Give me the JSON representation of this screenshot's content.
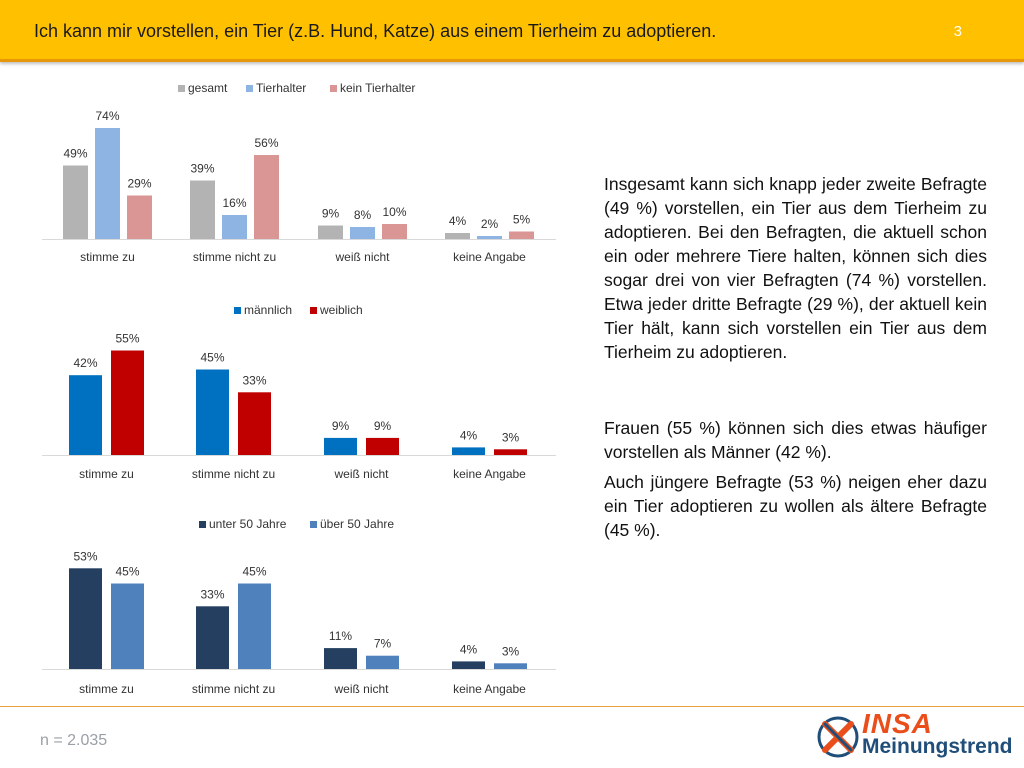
{
  "header": {
    "title": "Ich kann mir vorstellen, ein Tier (z.B. Hund, Katze) aus einem Tierheim zu adoptieren.",
    "page_number": "3"
  },
  "text_panel": {
    "paragraph_1": "Insgesamt kann sich knapp jeder zweite Befragte (49 %) vorstellen, ein Tier aus dem Tierheim zu adoptieren. Bei den Befragten, die aktuell schon ein oder mehrere Tiere halten, können sich dies sogar drei von vier Befragten (74 %) vorstellen. Etwa jeder dritte Befragte (29 %), der aktuell kein Tier hält, kann sich vorstellen ein Tier aus dem Tierheim zu adoptieren.",
    "paragraph_2": "Frauen (55 %) können sich dies etwas häufiger vorstellen als Männer (42 %).",
    "paragraph_3": "Auch jüngere Befragte (53 %) neigen eher dazu ein Tier adoptieren zu wollen als ältere Befragte (45 %)."
  },
  "footer": {
    "sample_size": "n = 2.035",
    "logo_brand": "INSA",
    "logo_subtitle": "Meinungstrend"
  },
  "chart_data": [
    {
      "type": "bar",
      "categories": [
        "stimme zu",
        "stimme nicht zu",
        "weiß nicht",
        "keine Angabe"
      ],
      "series": [
        {
          "name": "gesamt",
          "color": "#b3b3b3",
          "values": [
            49,
            39,
            9,
            4
          ]
        },
        {
          "name": "Tierhalter",
          "color": "#8db4e2",
          "values": [
            74,
            16,
            8,
            2
          ]
        },
        {
          "name": "kein Tierhalter",
          "color": "#da9694",
          "values": [
            29,
            56,
            10,
            5
          ]
        }
      ],
      "value_suffix": "%",
      "legend": "top",
      "grid": false
    },
    {
      "type": "bar",
      "categories": [
        "stimme zu",
        "stimme nicht zu",
        "weiß nicht",
        "keine Angabe"
      ],
      "series": [
        {
          "name": "männlich",
          "color": "#0070c0",
          "values": [
            42,
            45,
            9,
            4
          ]
        },
        {
          "name": "weiblich",
          "color": "#c00000",
          "values": [
            55,
            33,
            9,
            3
          ]
        }
      ],
      "value_suffix": "%",
      "legend": "top",
      "grid": false
    },
    {
      "type": "bar",
      "categories": [
        "stimme zu",
        "stimme nicht zu",
        "weiß nicht",
        "keine Angabe"
      ],
      "series": [
        {
          "name": "unter 50 Jahre",
          "color": "#243f60",
          "values": [
            53,
            33,
            11,
            4
          ]
        },
        {
          "name": "über 50 Jahre",
          "color": "#4f81bd",
          "values": [
            45,
            45,
            7,
            3
          ]
        }
      ],
      "value_suffix": "%",
      "legend": "top",
      "grid": false
    }
  ]
}
